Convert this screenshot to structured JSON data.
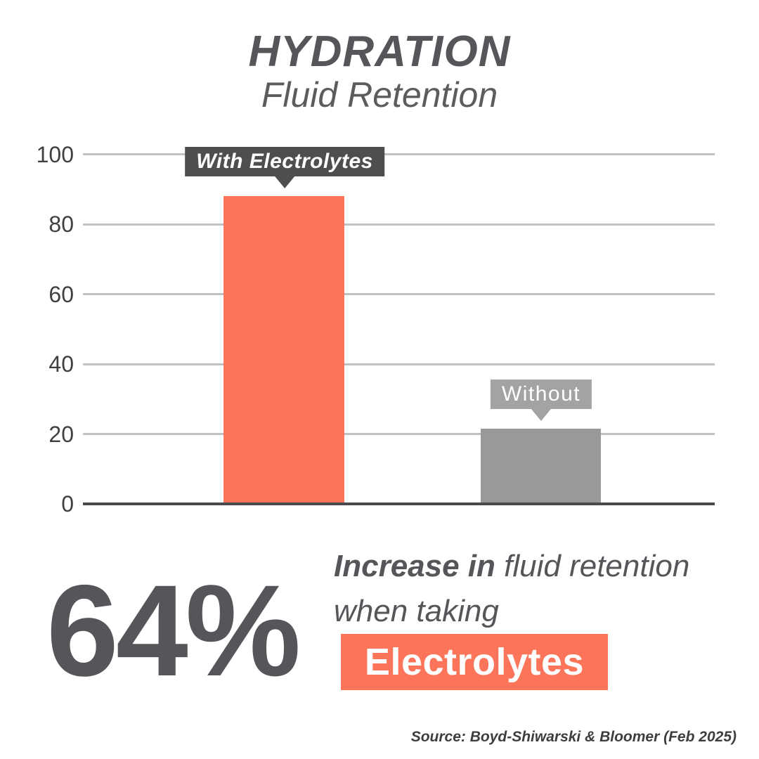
{
  "header": {
    "title": "HYDRATION",
    "subtitle": "Fluid Retention"
  },
  "chart_data": {
    "type": "bar",
    "title": "Hydration — Fluid Retention",
    "categories": [
      "With Electrolytes",
      "Without"
    ],
    "values": [
      88,
      21.5
    ],
    "xlabel": "",
    "ylabel": "",
    "ylim": [
      0,
      100
    ],
    "yticks": [
      0,
      20,
      40,
      60,
      80,
      100
    ],
    "grid": true,
    "legend_position": "none",
    "bar_colors": [
      "#FC7459",
      "#999999"
    ],
    "label_box_colors": [
      "#4D4E50",
      "#A3A3A3"
    ]
  },
  "callout": {
    "stat": "64%",
    "line1_bold": "Increase in",
    "line1_rest": " fluid retention",
    "line2": "when taking",
    "highlight": "Electrolytes"
  },
  "source": "Source: Boyd-Shiwarski & Bloomer (Feb 2025)",
  "colors": {
    "accent_orange": "#FC7459",
    "bar_gray": "#999999",
    "dark_text": "#55565A",
    "label_box_dark": "#4D4E50",
    "label_box_gray": "#A3A3A3",
    "gridline": "#C2C2C2",
    "axis_line": "#4A4A4C"
  }
}
